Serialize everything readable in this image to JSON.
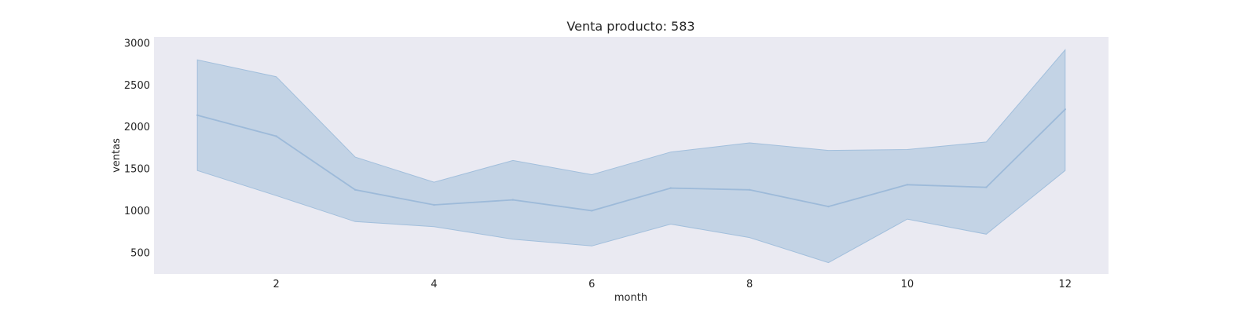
{
  "chart_data": {
    "type": "line",
    "title": "Venta producto: 583",
    "xlabel": "month",
    "ylabel": "ventas",
    "xlim": [
      0.45,
      12.55
    ],
    "ylim": [
      245,
      3075
    ],
    "xticks": [
      2,
      4,
      6,
      8,
      10,
      12
    ],
    "yticks": [
      500,
      1000,
      1500,
      2000,
      2500,
      3000
    ],
    "grid": false,
    "series": [
      {
        "x": [
          1,
          2,
          3,
          4,
          5,
          6,
          7,
          8,
          9,
          10,
          11,
          12
        ],
        "values": [
          2140,
          1890,
          1250,
          1070,
          1130,
          1000,
          1270,
          1250,
          1050,
          1310,
          1280,
          2210
        ],
        "upper": [
          2800,
          2600,
          1640,
          1340,
          1600,
          1430,
          1700,
          1810,
          1720,
          1730,
          1820,
          2920
        ],
        "lower": [
          1480,
          1180,
          870,
          810,
          660,
          580,
          840,
          680,
          380,
          900,
          720,
          1480
        ]
      }
    ],
    "colors": {
      "line": "#9dbad9",
      "band": "#b5cbe0",
      "band_edge": "#a2bfdc",
      "plot_bg": "#eaeaf2",
      "text": "#262626"
    }
  }
}
